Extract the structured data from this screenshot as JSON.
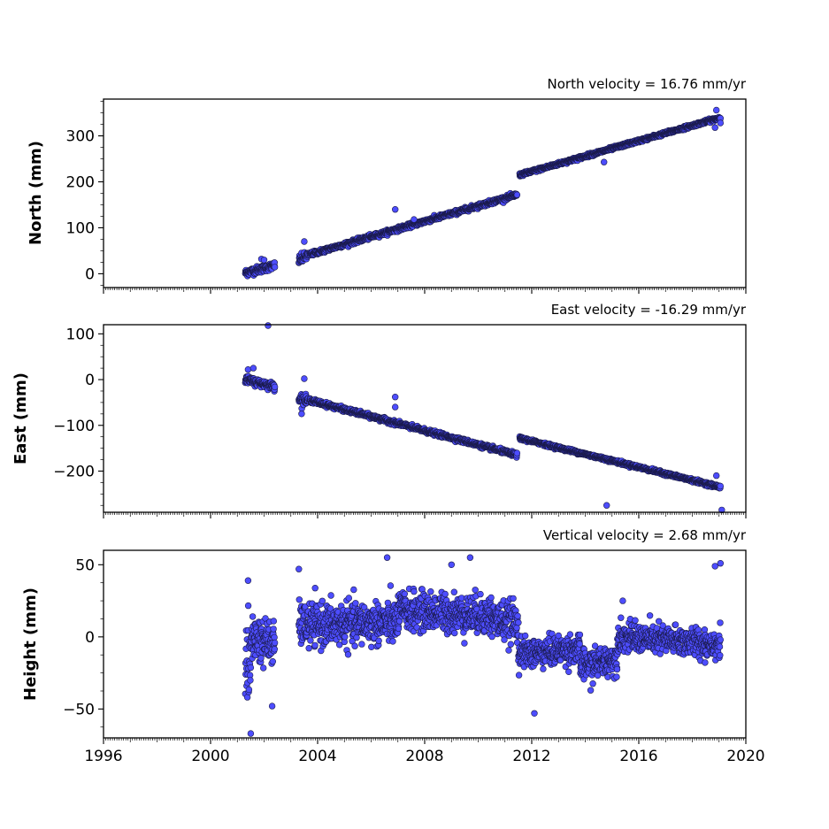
{
  "chart_data": [
    {
      "type": "scatter",
      "title": "North velocity = 16.76 mm/yr",
      "ylabel": "North (mm)",
      "xlabel": "",
      "xlim": [
        1996,
        2020
      ],
      "ylim": [
        -30,
        380
      ],
      "yticks": [
        0,
        100,
        200,
        300
      ],
      "ytick_labels": [
        "0",
        "100",
        "200",
        "300"
      ],
      "xticks": [
        1996,
        2000,
        2004,
        2008,
        2012,
        2016,
        2020
      ],
      "xtick_labels": [],
      "grid": false,
      "legend": "none",
      "color": "#4d4dff",
      "edge_color": "#1a1a4a",
      "segments": [
        {
          "x": [
            2001.3,
            2002.4
          ],
          "y": [
            2,
            18
          ],
          "scatter": 7
        },
        {
          "x": [
            2003.3,
            2003.65
          ],
          "y": [
            30,
            40
          ],
          "scatter": 9
        },
        {
          "x": [
            2003.7,
            2011.45
          ],
          "y": [
            42,
            172
          ],
          "scatter": 4
        },
        {
          "x": [
            2011.55,
            2019.05
          ],
          "y": [
            215,
            340
          ],
          "scatter": 3
        }
      ],
      "outliers": [
        {
          "x": 2001.9,
          "y": 32
        },
        {
          "x": 2002.0,
          "y": 30
        },
        {
          "x": 2003.5,
          "y": 70
        },
        {
          "x": 2006.9,
          "y": 140
        },
        {
          "x": 2007.6,
          "y": 118
        },
        {
          "x": 2014.7,
          "y": 243
        },
        {
          "x": 2018.9,
          "y": 356
        },
        {
          "x": 2018.85,
          "y": 318
        },
        {
          "x": 2019.05,
          "y": 328
        }
      ]
    },
    {
      "type": "scatter",
      "title": "East velocity = -16.29 mm/yr",
      "ylabel": "East (mm)",
      "xlabel": "",
      "xlim": [
        1996,
        2020
      ],
      "ylim": [
        -290,
        120
      ],
      "yticks": [
        -200,
        -100,
        0,
        100
      ],
      "ytick_labels": [
        "−200",
        "−100",
        "0",
        "100"
      ],
      "xticks": [
        1996,
        2000,
        2004,
        2008,
        2012,
        2016,
        2020
      ],
      "xtick_labels": [],
      "grid": false,
      "legend": "none",
      "color": "#4d4dff",
      "edge_color": "#1a1a4a",
      "segments": [
        {
          "x": [
            2001.3,
            2002.4
          ],
          "y": [
            0,
            -15
          ],
          "scatter": 7
        },
        {
          "x": [
            2003.3,
            2003.65
          ],
          "y": [
            -40,
            -48
          ],
          "scatter": 10
        },
        {
          "x": [
            2003.7,
            2011.45
          ],
          "y": [
            -45,
            -165
          ],
          "scatter": 4
        },
        {
          "x": [
            2011.55,
            2019.05
          ],
          "y": [
            -128,
            -235
          ],
          "scatter": 3
        }
      ],
      "outliers": [
        {
          "x": 2001.4,
          "y": 22
        },
        {
          "x": 2001.6,
          "y": 25
        },
        {
          "x": 2002.15,
          "y": 118
        },
        {
          "x": 2003.5,
          "y": 2
        },
        {
          "x": 2003.4,
          "y": -75
        },
        {
          "x": 2006.9,
          "y": -38
        },
        {
          "x": 2006.9,
          "y": -60
        },
        {
          "x": 2014.8,
          "y": -275
        },
        {
          "x": 2019.1,
          "y": -285
        },
        {
          "x": 2018.9,
          "y": -210
        }
      ]
    },
    {
      "type": "scatter",
      "title": "Vertical velocity = 2.68 mm/yr",
      "ylabel": "Height (mm)",
      "xlabel": "",
      "xlim": [
        1996,
        2020
      ],
      "ylim": [
        -70,
        60
      ],
      "yticks": [
        -50,
        0,
        50
      ],
      "ytick_labels": [
        "−50",
        "0",
        "50"
      ],
      "xticks": [
        1996,
        2000,
        2004,
        2008,
        2012,
        2016,
        2020
      ],
      "xtick_labels": [
        "1996",
        "2000",
        "2004",
        "2008",
        "2012",
        "2016",
        "2020"
      ],
      "grid": false,
      "legend": "none",
      "color": "#4d4dff",
      "edge_color": "#1a1a4a",
      "segments": [
        {
          "x": [
            2001.3,
            2001.5
          ],
          "y": [
            -15,
            -25
          ],
          "scatter": 28
        },
        {
          "x": [
            2001.5,
            2002.4
          ],
          "y": [
            0,
            -5
          ],
          "scatter": 14
        },
        {
          "x": [
            2003.3,
            2007.0
          ],
          "y": [
            8,
            10
          ],
          "scatter": 13
        },
        {
          "x": [
            2007.0,
            2010.5
          ],
          "y": [
            18,
            15
          ],
          "scatter": 12
        },
        {
          "x": [
            2010.5,
            2011.5
          ],
          "y": [
            12,
            10
          ],
          "scatter": 12
        },
        {
          "x": [
            2011.5,
            2013.8
          ],
          "y": [
            -12,
            -8
          ],
          "scatter": 9
        },
        {
          "x": [
            2013.8,
            2015.2
          ],
          "y": [
            -20,
            -15
          ],
          "scatter": 9
        },
        {
          "x": [
            2015.2,
            2019.05
          ],
          "y": [
            0,
            -5
          ],
          "scatter": 9
        }
      ],
      "outliers": [
        {
          "x": 2001.4,
          "y": 39
        },
        {
          "x": 2001.5,
          "y": -67
        },
        {
          "x": 2003.3,
          "y": 47
        },
        {
          "x": 2006.6,
          "y": 55
        },
        {
          "x": 2009.7,
          "y": 55
        },
        {
          "x": 2009.0,
          "y": 50
        },
        {
          "x": 2012.1,
          "y": -53
        },
        {
          "x": 2002.3,
          "y": -48
        },
        {
          "x": 2018.85,
          "y": 49
        },
        {
          "x": 2019.05,
          "y": 51
        },
        {
          "x": 2015.4,
          "y": 25
        },
        {
          "x": 2014.2,
          "y": -37
        }
      ]
    }
  ]
}
